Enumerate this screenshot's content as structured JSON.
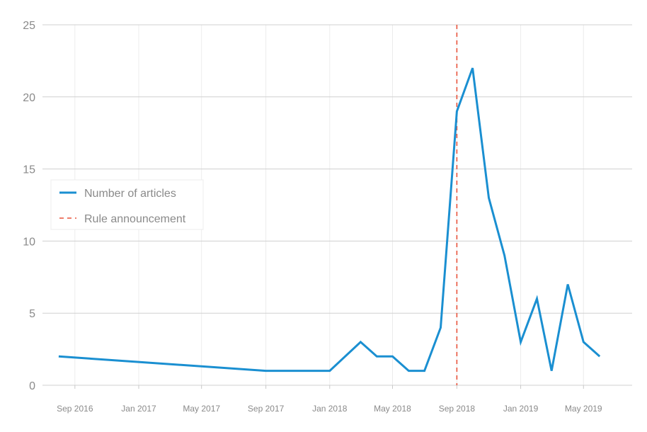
{
  "chart_data": {
    "type": "line",
    "title": "",
    "xlabel": "",
    "ylabel": "",
    "ylim": [
      0,
      25
    ],
    "y_ticks": [
      "0",
      "5",
      "10",
      "15",
      "20",
      "25"
    ],
    "x_ticks": [
      {
        "date": "2016-09-01",
        "label": "Sep 2016"
      },
      {
        "date": "2017-01-01",
        "label": "Jan 2017"
      },
      {
        "date": "2017-05-01",
        "label": "May 2017"
      },
      {
        "date": "2017-09-01",
        "label": "Sep 2017"
      },
      {
        "date": "2018-01-01",
        "label": "Jan 2018"
      },
      {
        "date": "2018-05-01",
        "label": "May 2018"
      },
      {
        "date": "2018-09-01",
        "label": "Sep 2018"
      },
      {
        "date": "2019-01-01",
        "label": "Jan 2019"
      },
      {
        "date": "2019-05-01",
        "label": "May 2019"
      }
    ],
    "grid": true,
    "legend_position": "middle-left",
    "series": [
      {
        "name": "Number of articles",
        "color": "#1a8fd1",
        "points": [
          {
            "x": "2016-08-01",
            "y": 2
          },
          {
            "x": "2017-09-01",
            "y": 1
          },
          {
            "x": "2017-10-01",
            "y": 1
          },
          {
            "x": "2017-11-01",
            "y": 1
          },
          {
            "x": "2017-12-01",
            "y": 1
          },
          {
            "x": "2018-01-01",
            "y": 1
          },
          {
            "x": "2018-03-01",
            "y": 3
          },
          {
            "x": "2018-04-01",
            "y": 2
          },
          {
            "x": "2018-05-01",
            "y": 2
          },
          {
            "x": "2018-06-01",
            "y": 1
          },
          {
            "x": "2018-07-01",
            "y": 1
          },
          {
            "x": "2018-08-01",
            "y": 4
          },
          {
            "x": "2018-09-01",
            "y": 19
          },
          {
            "x": "2018-10-01",
            "y": 22
          },
          {
            "x": "2018-11-01",
            "y": 13
          },
          {
            "x": "2018-12-01",
            "y": 9
          },
          {
            "x": "2019-01-01",
            "y": 3
          },
          {
            "x": "2019-02-01",
            "y": 6
          },
          {
            "x": "2019-03-01",
            "y": 1
          },
          {
            "x": "2019-04-01",
            "y": 7
          },
          {
            "x": "2019-05-01",
            "y": 3
          },
          {
            "x": "2019-06-01",
            "y": 2
          }
        ]
      }
    ],
    "annotations": [
      {
        "type": "vline",
        "x": "2018-09-01",
        "label": "Rule announcement",
        "color": "#e8533b",
        "style": "dashed"
      }
    ]
  }
}
